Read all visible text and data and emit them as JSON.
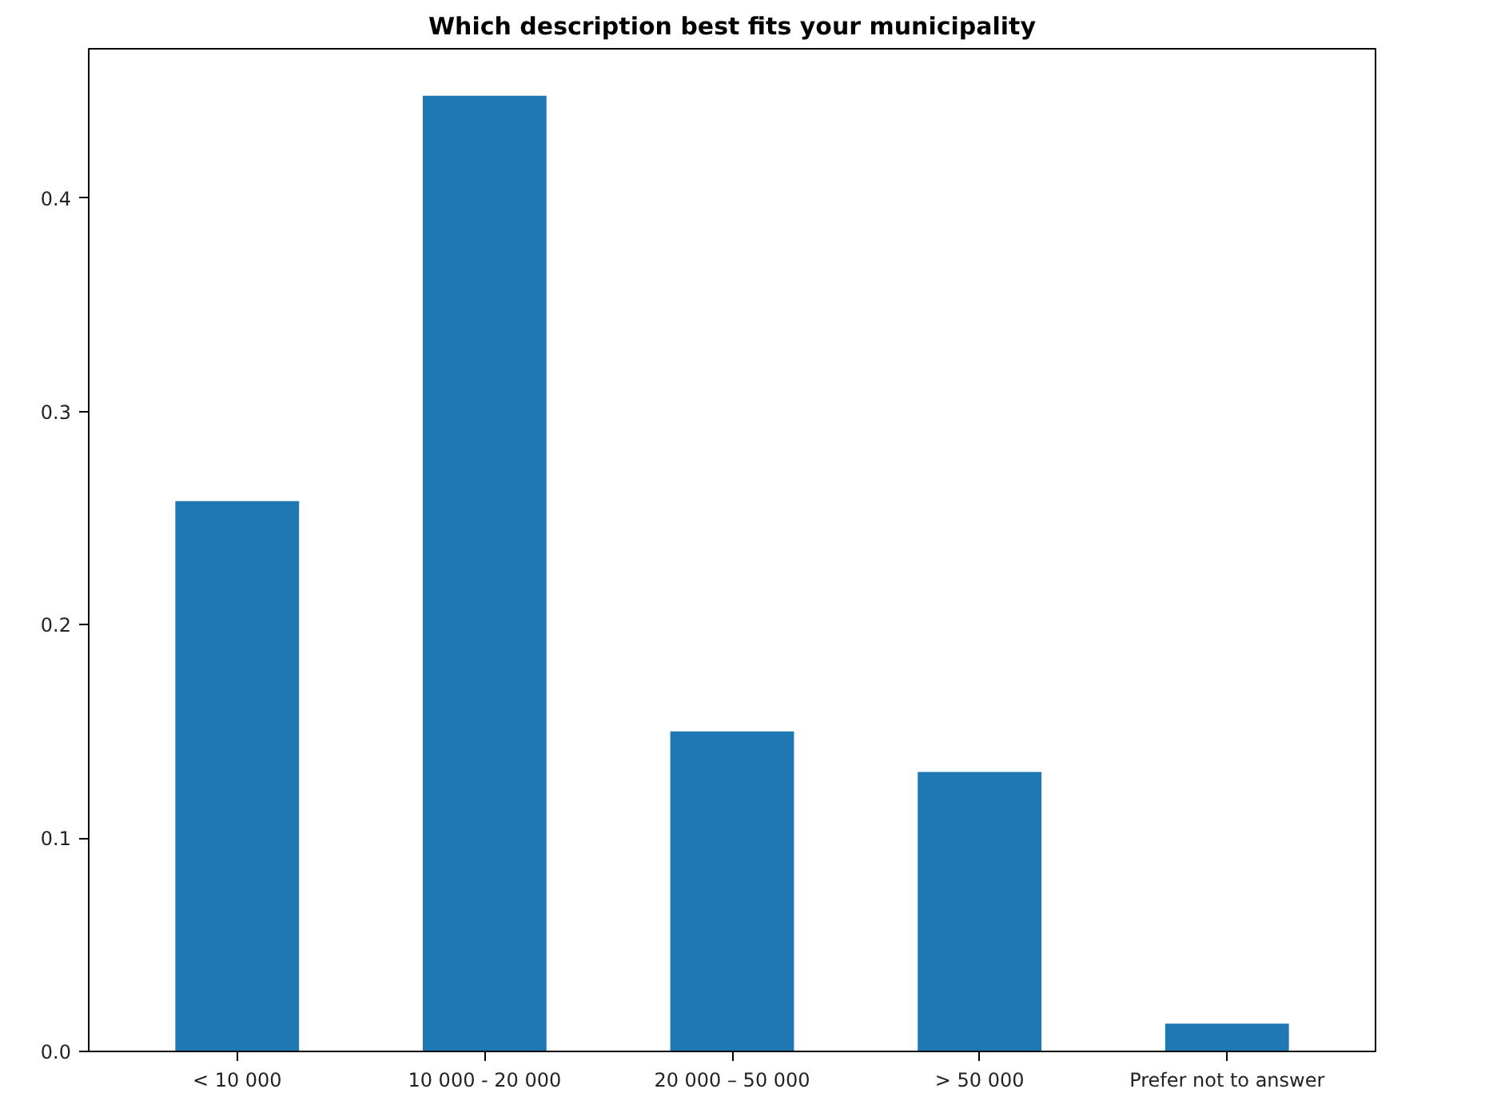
{
  "chart_data": {
    "type": "bar",
    "title": "Which description best fits your municipality",
    "categories": [
      "< 10 000",
      "10 000 - 20 000",
      "20 000 – 50 000",
      "> 50 000",
      "Prefer not to answer"
    ],
    "values": [
      0.258,
      0.448,
      0.15,
      0.131,
      0.013
    ],
    "color": "#1f77b4",
    "ylim": [
      0,
      0.47
    ],
    "yticks": [
      {
        "value": 0,
        "label": "0.0"
      },
      0.1,
      0.2,
      0.3,
      0.4
    ],
    "grid": false
  }
}
